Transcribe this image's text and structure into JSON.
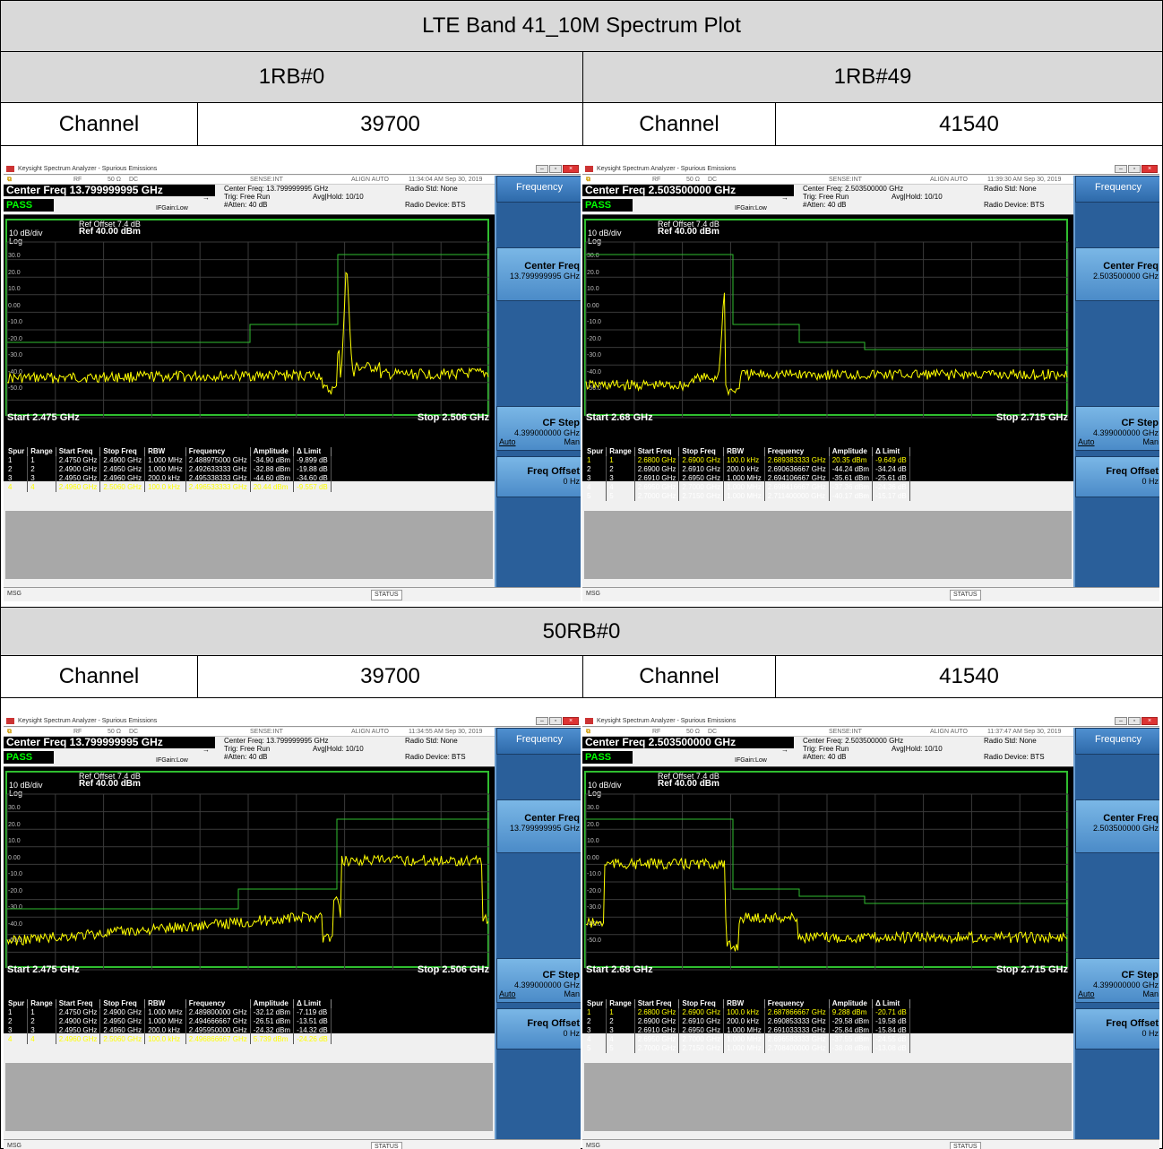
{
  "title": "LTE Band 41_10M Spectrum Plot",
  "sections": [
    {
      "left_label": "1RB#0",
      "right_label": "1RB#49"
    },
    {
      "label": "50RB#0"
    }
  ],
  "channel_label": "Channel",
  "channels": {
    "left": "39700",
    "right": "41540"
  },
  "analyzer_common": {
    "app_title": "Keysight Spectrum Analyzer - Spurious Emissions",
    "rf": "RF",
    "ohm": "50 Ω",
    "dc": "DC",
    "sense": "SENSE:INT",
    "align": "ALIGN AUTO",
    "trig": "Trig: Free Run",
    "avg": "Avg|Hold: 10/10",
    "atten": "#Atten: 40 dB",
    "radio_std": "Radio Std: None",
    "radio_dev": "Radio Device: BTS",
    "ifgain": "IFGain:Low",
    "pass": "PASS",
    "ref_offset": "Ref Offset 7.4 dB",
    "scale": "10 dB/div",
    "ref_level": "Ref 40.00 dBm",
    "log": "Log",
    "yticks": [
      "30.0",
      "20.0",
      "10.0",
      "0.00",
      "-10.0",
      "-20.0",
      "-30.0",
      "-40.0",
      "-50.0"
    ],
    "msg": "MSG",
    "status": "STATUS",
    "sk_header": "Frequency",
    "sk_center": "Center Freq",
    "sk_cfstep": "CF Step",
    "sk_cfstep_val": "4.399000000 GHz",
    "sk_auto": "Auto",
    "sk_man": "Man",
    "sk_freqoffset": "Freq Offset",
    "sk_freqoffset_val": "0 Hz",
    "table_headers": [
      "Spur",
      "Range",
      "Start Freq",
      "Stop Freq",
      "RBW",
      "Frequency",
      "Amplitude",
      "Δ Limit"
    ]
  },
  "analyzers": [
    {
      "id": "a1",
      "time": "11:34:04 AM Sep 30, 2019",
      "center_freq_bar": "Center Freq 13.799999995 GHz",
      "center_freq_info": "Center Freq: 13.799999995 GHz",
      "sk_center_val": "13.799999995 GHz",
      "start": "Start  2.475 GHz",
      "stop": "Stop 2.506 GHz",
      "rows": [
        {
          "spur": "1",
          "range": "1",
          "start": "2.4750 GHz",
          "stop": "2.4900 GHz",
          "rbw": "1.000 MHz",
          "freq": "2.488975000 GHz",
          "amp": "-34.90 dBm",
          "dl": "-9.899 dB",
          "hl": false
        },
        {
          "spur": "2",
          "range": "2",
          "start": "2.4900 GHz",
          "stop": "2.4950 GHz",
          "rbw": "1.000 MHz",
          "freq": "2.492633333 GHz",
          "amp": "-32.88 dBm",
          "dl": "-19.88 dB",
          "hl": false
        },
        {
          "spur": "3",
          "range": "3",
          "start": "2.4950 GHz",
          "stop": "2.4960 GHz",
          "rbw": "200.0 kHz",
          "freq": "2.495338333 GHz",
          "amp": "-44.60 dBm",
          "dl": "-34.60 dB",
          "hl": false
        },
        {
          "spur": "4",
          "range": "4",
          "start": "2.4960 GHz",
          "stop": "2.5060 GHz",
          "rbw": "100.0 kHz",
          "freq": "2.496533333 GHz",
          "amp": "20.44 dBm",
          "dl": "-9.557 dB",
          "hl": true
        }
      ]
    },
    {
      "id": "a2",
      "time": "11:39:30 AM Sep 30, 2019",
      "center_freq_bar": "Center Freq 2.503500000 GHz",
      "center_freq_info": "Center Freq: 2.503500000 GHz",
      "sk_center_val": "2.503500000 GHz",
      "start": "Start  2.68 GHz",
      "stop": "Stop 2.715 GHz",
      "rows": [
        {
          "spur": "1",
          "range": "1",
          "start": "2.6800 GHz",
          "stop": "2.6900 GHz",
          "rbw": "100.0 kHz",
          "freq": "2.689383333 GHz",
          "amp": "20.35 dBm",
          "dl": "-9.649 dB",
          "hl": true
        },
        {
          "spur": "2",
          "range": "2",
          "start": "2.6900 GHz",
          "stop": "2.6910 GHz",
          "rbw": "200.0 kHz",
          "freq": "2.690636667 GHz",
          "amp": "-44.24 dBm",
          "dl": "-34.24 dB",
          "hl": false
        },
        {
          "spur": "3",
          "range": "3",
          "start": "2.6910 GHz",
          "stop": "2.6950 GHz",
          "rbw": "1.000 MHz",
          "freq": "2.694106667 GHz",
          "amp": "-35.61 dBm",
          "dl": "-25.61 dB",
          "hl": false
        },
        {
          "spur": "4",
          "range": "4",
          "start": "2.6950 GHz",
          "stop": "2.7000 GHz",
          "rbw": "1.000 MHz",
          "freq": "2.698416667 GHz",
          "amp": "-37.36 dBm",
          "dl": "-24.36 dB",
          "hl": false
        },
        {
          "spur": "5",
          "range": "5",
          "start": "2.7000 GHz",
          "stop": "2.7150 GHz",
          "rbw": "1.000 MHz",
          "freq": "2.711400000 GHz",
          "amp": "-40.17 dBm",
          "dl": "-15.17 dB",
          "hl": false
        }
      ]
    },
    {
      "id": "a3",
      "time": "11:34:55 AM Sep 30, 2019",
      "center_freq_bar": "Center Freq 13.799999995 GHz",
      "center_freq_info": "Center Freq: 13.799999995 GHz",
      "sk_center_val": "13.799999995 GHz",
      "start": "Start  2.475 GHz",
      "stop": "Stop 2.506 GHz",
      "rows": [
        {
          "spur": "1",
          "range": "1",
          "start": "2.4750 GHz",
          "stop": "2.4900 GHz",
          "rbw": "1.000 MHz",
          "freq": "2.489800000 GHz",
          "amp": "-32.12 dBm",
          "dl": "-7.119 dB",
          "hl": false
        },
        {
          "spur": "2",
          "range": "2",
          "start": "2.4900 GHz",
          "stop": "2.4950 GHz",
          "rbw": "1.000 MHz",
          "freq": "2.494666667 GHz",
          "amp": "-26.51 dBm",
          "dl": "-13.51 dB",
          "hl": false
        },
        {
          "spur": "3",
          "range": "3",
          "start": "2.4950 GHz",
          "stop": "2.4960 GHz",
          "rbw": "200.0 kHz",
          "freq": "2.495950000 GHz",
          "amp": "-24.32 dBm",
          "dl": "-14.32 dB",
          "hl": false
        },
        {
          "spur": "4",
          "range": "4",
          "start": "2.4960 GHz",
          "stop": "2.5060 GHz",
          "rbw": "100.0 kHz",
          "freq": "2.496866667 GHz",
          "amp": "5.739 dBm",
          "dl": "-24.26 dB",
          "hl": true
        }
      ]
    },
    {
      "id": "a4",
      "time": "11:37:47 AM Sep 30, 2019",
      "center_freq_bar": "Center Freq 2.503500000 GHz",
      "center_freq_info": "Center Freq: 2.503500000 GHz",
      "sk_center_val": "2.503500000 GHz",
      "start": "Start  2.68 GHz",
      "stop": "Stop 2.715 GHz",
      "rows": [
        {
          "spur": "1",
          "range": "1",
          "start": "2.6800 GHz",
          "stop": "2.6900 GHz",
          "rbw": "100.0 kHz",
          "freq": "2.687866667 GHz",
          "amp": "9.288 dBm",
          "dl": "-20.71 dB",
          "hl": true
        },
        {
          "spur": "2",
          "range": "2",
          "start": "2.6900 GHz",
          "stop": "2.6910 GHz",
          "rbw": "200.0 kHz",
          "freq": "2.690853333 GHz",
          "amp": "-29.58 dBm",
          "dl": "-19.58 dB",
          "hl": false
        },
        {
          "spur": "3",
          "range": "3",
          "start": "2.6910 GHz",
          "stop": "2.6950 GHz",
          "rbw": "1.000 MHz",
          "freq": "2.691033333 GHz",
          "amp": "-25.84 dBm",
          "dl": "-15.84 dB",
          "hl": false
        },
        {
          "spur": "4",
          "range": "4",
          "start": "2.6950 GHz",
          "stop": "2.7000 GHz",
          "rbw": "1.000 MHz",
          "freq": "2.696583333 GHz",
          "amp": "-37.55 dBm",
          "dl": "-24.55 dB",
          "hl": false
        },
        {
          "spur": "5",
          "range": "5",
          "start": "2.7000 GHz",
          "stop": "2.7150 GHz",
          "rbw": "1.000 MHz",
          "freq": "2.708400000 GHz",
          "amp": "-38.08 dBm",
          "dl": "-13.08 dB",
          "hl": false
        }
      ]
    }
  ],
  "colors": {
    "header_bg": "#d9d9d9",
    "trace": "#ffff00",
    "limit": "#2fbe2f",
    "softkey": "#4b8bc8"
  }
}
